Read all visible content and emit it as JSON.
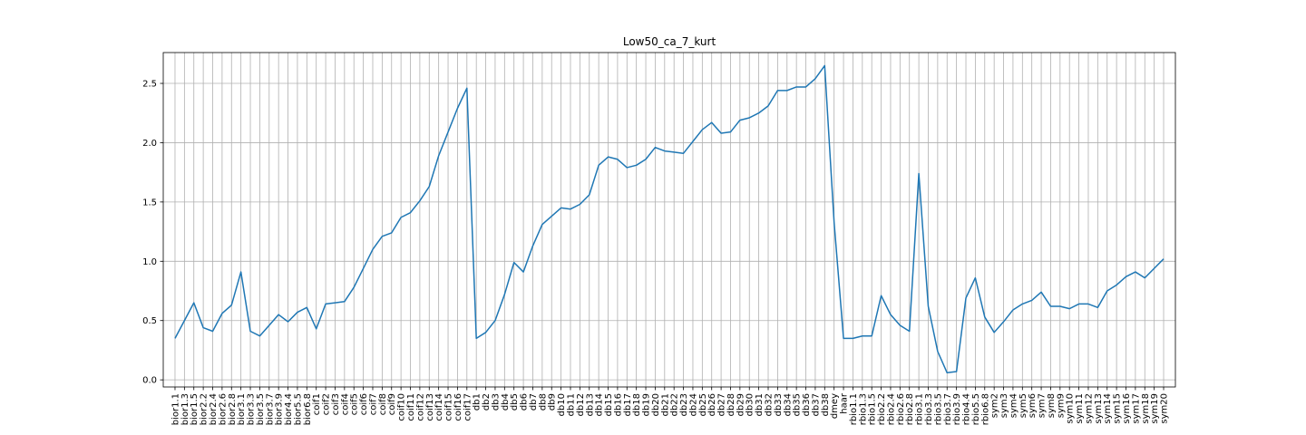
{
  "chart_data": {
    "type": "line",
    "title": "Low50_ca_7_kurt",
    "xlabel": "",
    "ylabel": "",
    "ylim": [
      -0.06,
      2.76
    ],
    "y_ticks": [
      0.0,
      0.5,
      1.0,
      1.5,
      2.0,
      2.5
    ],
    "y_tick_labels": [
      "0.0",
      "0.5",
      "1.0",
      "1.5",
      "2.0",
      "2.5"
    ],
    "grid": true,
    "legend": "none",
    "colors": {
      "line": "#1f77b4",
      "grid": "#b0b0b0",
      "axes": "#000000"
    },
    "categories": [
      "bior1.1",
      "bior1.3",
      "bior1.5",
      "bior2.2",
      "bior2.4",
      "bior2.6",
      "bior2.8",
      "bior3.1",
      "bior3.3",
      "bior3.5",
      "bior3.7",
      "bior3.9",
      "bior4.4",
      "bior5.5",
      "bior6.8",
      "coif1",
      "coif2",
      "coif3",
      "coif4",
      "coif5",
      "coif6",
      "coif7",
      "coif8",
      "coif9",
      "coif10",
      "coif11",
      "coif12",
      "coif13",
      "coif14",
      "coif15",
      "coif16",
      "coif17",
      "db1",
      "db2",
      "db3",
      "db4",
      "db5",
      "db6",
      "db7",
      "db8",
      "db9",
      "db10",
      "db11",
      "db12",
      "db13",
      "db14",
      "db15",
      "db16",
      "db17",
      "db18",
      "db19",
      "db20",
      "db21",
      "db22",
      "db23",
      "db24",
      "db25",
      "db26",
      "db27",
      "db28",
      "db29",
      "db30",
      "db31",
      "db32",
      "db33",
      "db34",
      "db35",
      "db36",
      "db37",
      "db38",
      "dmey",
      "haar",
      "rbio1.1",
      "rbio1.3",
      "rbio1.5",
      "rbio2.2",
      "rbio2.4",
      "rbio2.6",
      "rbio2.8",
      "rbio3.1",
      "rbio3.3",
      "rbio3.5",
      "rbio3.7",
      "rbio3.9",
      "rbio4.4",
      "rbio5.5",
      "rbio6.8",
      "sym2",
      "sym3",
      "sym4",
      "sym5",
      "sym6",
      "sym7",
      "sym8",
      "sym9",
      "sym10",
      "sym11",
      "sym12",
      "sym13",
      "sym14",
      "sym15",
      "sym16",
      "sym17",
      "sym18",
      "sym19",
      "sym20"
    ],
    "series": [
      {
        "values": [
          0.35,
          0.5,
          0.65,
          0.44,
          0.41,
          0.56,
          0.63,
          0.91,
          0.41,
          0.37,
          0.46,
          0.55,
          0.49,
          0.57,
          0.61,
          0.43,
          0.64,
          0.65,
          0.66,
          0.78,
          0.94,
          1.1,
          1.21,
          1.24,
          1.37,
          1.41,
          1.51,
          1.63,
          1.89,
          2.09,
          2.29,
          2.46,
          0.35,
          0.4,
          0.5,
          0.72,
          0.99,
          0.91,
          1.13,
          1.31,
          1.38,
          1.45,
          1.44,
          1.48,
          1.56,
          1.81,
          1.88,
          1.86,
          1.79,
          1.81,
          1.86,
          1.96,
          1.93,
          1.92,
          1.91,
          2.01,
          2.11,
          2.17,
          2.08,
          2.09,
          2.19,
          2.21,
          2.25,
          2.31,
          2.44,
          2.44,
          2.47,
          2.47,
          2.54,
          2.65,
          1.33,
          0.35,
          0.35,
          0.37,
          0.37,
          0.71,
          0.55,
          0.46,
          0.41,
          1.74,
          0.62,
          0.24,
          0.06,
          0.07,
          0.69,
          0.86,
          0.53,
          0.4,
          0.49,
          0.59,
          0.64,
          0.67,
          0.74,
          0.62,
          0.62,
          0.6,
          0.64,
          0.64,
          0.61,
          0.75,
          0.8,
          0.87,
          0.91,
          0.86,
          0.94,
          1.02
        ]
      }
    ]
  }
}
